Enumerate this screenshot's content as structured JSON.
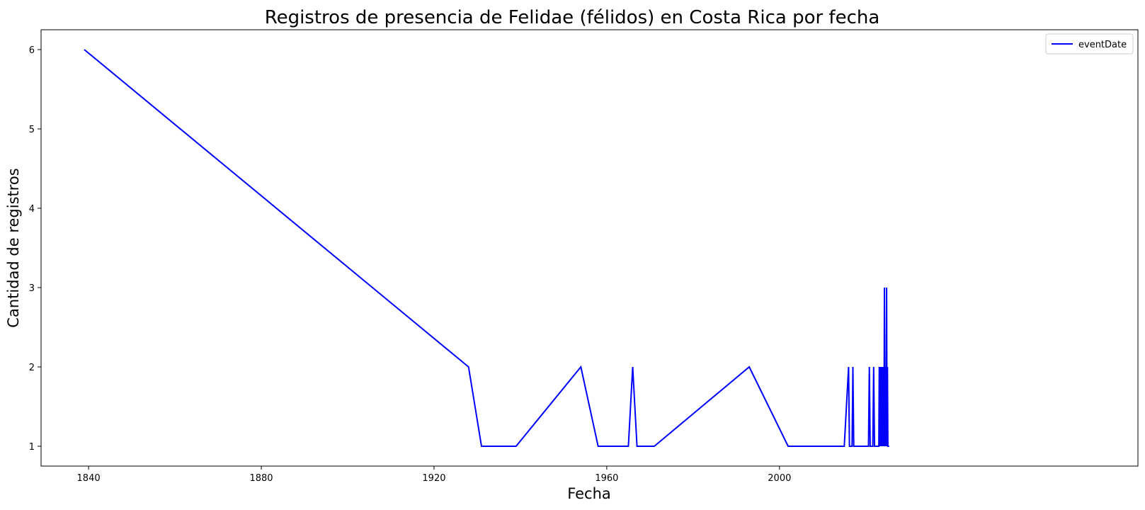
{
  "chart_data": {
    "type": "line",
    "title": "Registros de presencia de Felidae (félidos) en Costa Rica por fecha",
    "xlabel": "Fecha",
    "ylabel": "Cantidad de registros",
    "xlim": [
      1829,
      2083
    ],
    "ylim": [
      0.75,
      6.25
    ],
    "x_ticks": [
      1840,
      1880,
      1920,
      1960,
      2000
    ],
    "x_tick_labels": [
      "1840",
      "1880",
      "1920",
      "1960",
      "2000"
    ],
    "y_ticks": [
      1,
      2,
      3,
      4,
      5,
      6
    ],
    "y_tick_labels": [
      "1",
      "2",
      "3",
      "4",
      "5",
      "6"
    ],
    "grid": false,
    "legend_position": "upper right",
    "colors": {
      "series": "#0000ff",
      "axes": "#000000",
      "background": "#ffffff"
    },
    "series": [
      {
        "name": "eventDate",
        "points": [
          [
            1839,
            6
          ],
          [
            1928,
            2
          ],
          [
            1931,
            1
          ],
          [
            1939,
            1
          ],
          [
            1954,
            2
          ],
          [
            1958,
            1
          ],
          [
            1965,
            1
          ],
          [
            1966,
            2
          ],
          [
            1967,
            1
          ],
          [
            1971,
            1
          ],
          [
            1993,
            2
          ],
          [
            2002,
            1
          ],
          [
            2015,
            1
          ],
          [
            2016,
            2
          ],
          [
            2016.2,
            1
          ],
          [
            2016.8,
            1
          ],
          [
            2017,
            2
          ],
          [
            2017.2,
            1
          ],
          [
            2020.6,
            1
          ],
          [
            2020.8,
            2
          ],
          [
            2021,
            1
          ],
          [
            2021.6,
            1
          ],
          [
            2021.8,
            2
          ],
          [
            2022,
            1
          ],
          [
            2023,
            1
          ],
          [
            2023.1,
            2
          ],
          [
            2023.3,
            1
          ],
          [
            2023.4,
            2
          ],
          [
            2023.6,
            1
          ],
          [
            2023.7,
            2
          ],
          [
            2023.9,
            1
          ],
          [
            2024,
            2
          ],
          [
            2024.2,
            1
          ],
          [
            2024.3,
            3
          ],
          [
            2024.4,
            2
          ],
          [
            2024.5,
            1
          ],
          [
            2024.6,
            2
          ],
          [
            2024.7,
            1
          ],
          [
            2024.8,
            3
          ],
          [
            2024.9,
            1
          ],
          [
            2025,
            2
          ],
          [
            2025.1,
            1
          ],
          [
            2025.4,
            1
          ]
        ]
      }
    ]
  }
}
